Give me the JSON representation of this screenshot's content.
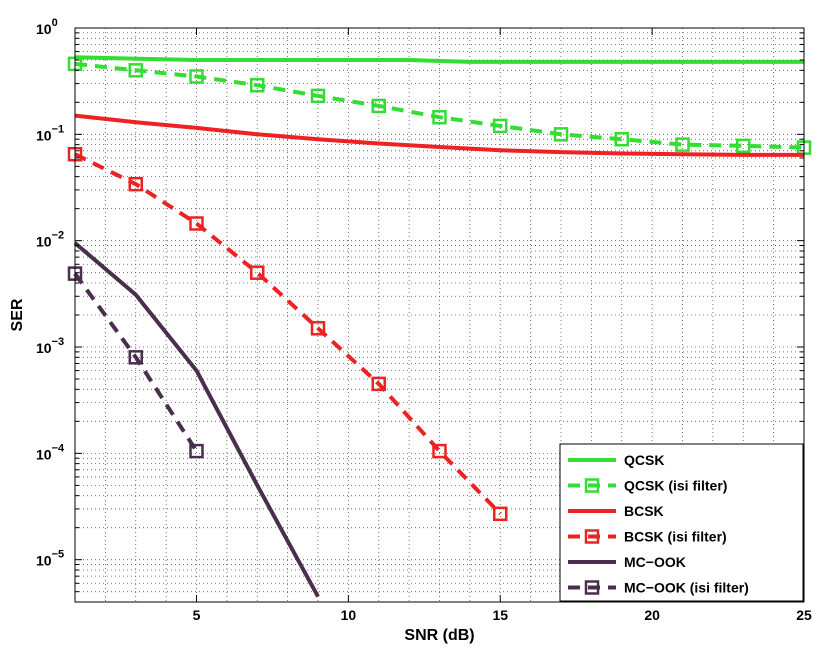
{
  "chart_data": {
    "type": "line",
    "xlabel": "SNR (dB)",
    "ylabel": "SER",
    "xlim": [
      1,
      25
    ],
    "ylim": [
      4e-06,
      1
    ],
    "yscale": "log",
    "grid": true,
    "x_ticks": [
      5,
      10,
      15,
      20,
      25
    ],
    "x_tick_labels": [
      "5",
      "10",
      "15",
      "20",
      "25"
    ],
    "y_ticks": [
      1e-05,
      0.0001,
      0.001,
      0.01,
      0.1,
      1
    ],
    "y_tick_labels": [
      {
        "base": "10",
        "exp": "−5"
      },
      {
        "base": "10",
        "exp": "−4"
      },
      {
        "base": "10",
        "exp": "−3"
      },
      {
        "base": "10",
        "exp": "−2"
      },
      {
        "base": "10",
        "exp": "−1"
      },
      {
        "base": "10",
        "exp": "0"
      }
    ],
    "legend_position": "bottom-right",
    "series": [
      {
        "name": "QCSK",
        "color": "#33dd33",
        "dash": false,
        "marker": false,
        "x": [
          1,
          5,
          10,
          12,
          14,
          25
        ],
        "y": [
          0.53,
          0.5,
          0.5,
          0.5,
          0.48,
          0.48
        ]
      },
      {
        "name": "QCSK (isi filter)",
        "color": "#33dd33",
        "dash": true,
        "marker": true,
        "x": [
          1,
          3,
          5,
          7,
          9,
          11,
          13,
          15,
          17,
          19,
          21,
          23,
          25
        ],
        "y": [
          0.46,
          0.4,
          0.35,
          0.29,
          0.23,
          0.185,
          0.145,
          0.12,
          0.1,
          0.09,
          0.08,
          0.078,
          0.075
        ]
      },
      {
        "name": "BCSK",
        "color": "#ee2222",
        "dash": false,
        "marker": false,
        "x": [
          1,
          3,
          5,
          7,
          9,
          11,
          13,
          15,
          17,
          19,
          21,
          23,
          25
        ],
        "y": [
          0.15,
          0.13,
          0.115,
          0.1,
          0.09,
          0.082,
          0.076,
          0.071,
          0.068,
          0.066,
          0.065,
          0.064,
          0.064
        ]
      },
      {
        "name": "BCSK (isi filter)",
        "color": "#ee2222",
        "dash": true,
        "marker": true,
        "x": [
          1,
          3,
          5,
          7,
          9,
          11,
          13,
          15
        ],
        "y": [
          0.065,
          0.034,
          0.0145,
          0.005,
          0.0015,
          0.00045,
          0.000105,
          2.7e-05
        ]
      },
      {
        "name": "MC−OOK",
        "color": "#4a2f4d",
        "dash": false,
        "marker": false,
        "x": [
          1,
          3,
          5,
          7,
          9
        ],
        "y": [
          0.0095,
          0.0031,
          0.0006,
          5e-05,
          4.5e-06
        ]
      },
      {
        "name": "MC−OOK (isi filter)",
        "color": "#4a2f4d",
        "dash": true,
        "marker": true,
        "x": [
          1,
          3,
          5
        ],
        "y": [
          0.0049,
          0.0008,
          0.000105
        ]
      }
    ]
  }
}
